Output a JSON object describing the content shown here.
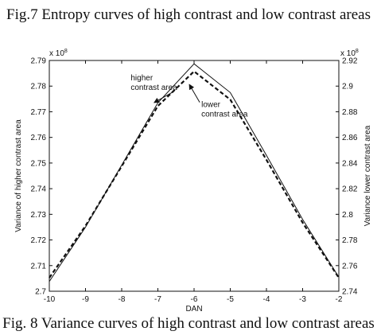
{
  "captions": {
    "top": "Fig.7 Entropy curves of high contrast and low contrast areas",
    "bottom": "Fig. 8 Variance curves of high contrast and low contrast areas"
  },
  "chart_data": {
    "type": "line",
    "title": "",
    "xlabel": "DAN",
    "ylabel_left": "Variance of higher contrast area",
    "ylabel_right": "Variance lower contrast area",
    "x": [
      -10,
      -9,
      -8,
      -7,
      -6,
      -5,
      -4,
      -3,
      -2
    ],
    "xlim": [
      -10,
      -2
    ],
    "x_ticks": [
      "-10",
      "-9",
      "-8",
      "-7",
      "-6",
      "-5",
      "-4",
      "-3",
      "-2"
    ],
    "ylim_left": [
      2.7,
      2.79
    ],
    "ylim_right": [
      2.74,
      2.92
    ],
    "y_ticks_left": [
      "2.7",
      "2.71",
      "2.72",
      "2.73",
      "2.74",
      "2.75",
      "2.76",
      "2.77",
      "2.78",
      "2.79"
    ],
    "y_ticks_right": [
      "2.74",
      "2.76",
      "2.78",
      "2.8",
      "2.82",
      "2.84",
      "2.86",
      "2.88",
      "2.9",
      "2.92"
    ],
    "y_multiplier_left": "x 10",
    "y_multiplier_right": "x 10",
    "y_multiplier_exponent": "8",
    "series": [
      {
        "axis": "left",
        "style": "solid",
        "color": "#111111",
        "values": [
          2.7038,
          2.725,
          2.7492,
          2.7735,
          2.7887,
          2.7775,
          2.753,
          2.728,
          2.7055
        ]
      },
      {
        "axis": "right",
        "style": "dashed",
        "color": "#111111",
        "values": [
          2.7505,
          2.791,
          2.8375,
          2.8845,
          2.9115,
          2.8895,
          2.8425,
          2.7935,
          2.7505
        ]
      }
    ],
    "annotations": [
      {
        "lines": [
          "higher",
          "contrast area"
        ],
        "x": -7.75,
        "y_axis": "left",
        "y": 2.7822,
        "arrow_to": [
          -7.1,
          2.7736
        ]
      },
      {
        "lines": [
          "lower",
          "contrast area"
        ],
        "x": -5.8,
        "y_axis": "left",
        "y": 2.7718,
        "arrow_to": [
          -6.13,
          2.7806
        ]
      }
    ],
    "grid": false,
    "legend": "none"
  }
}
